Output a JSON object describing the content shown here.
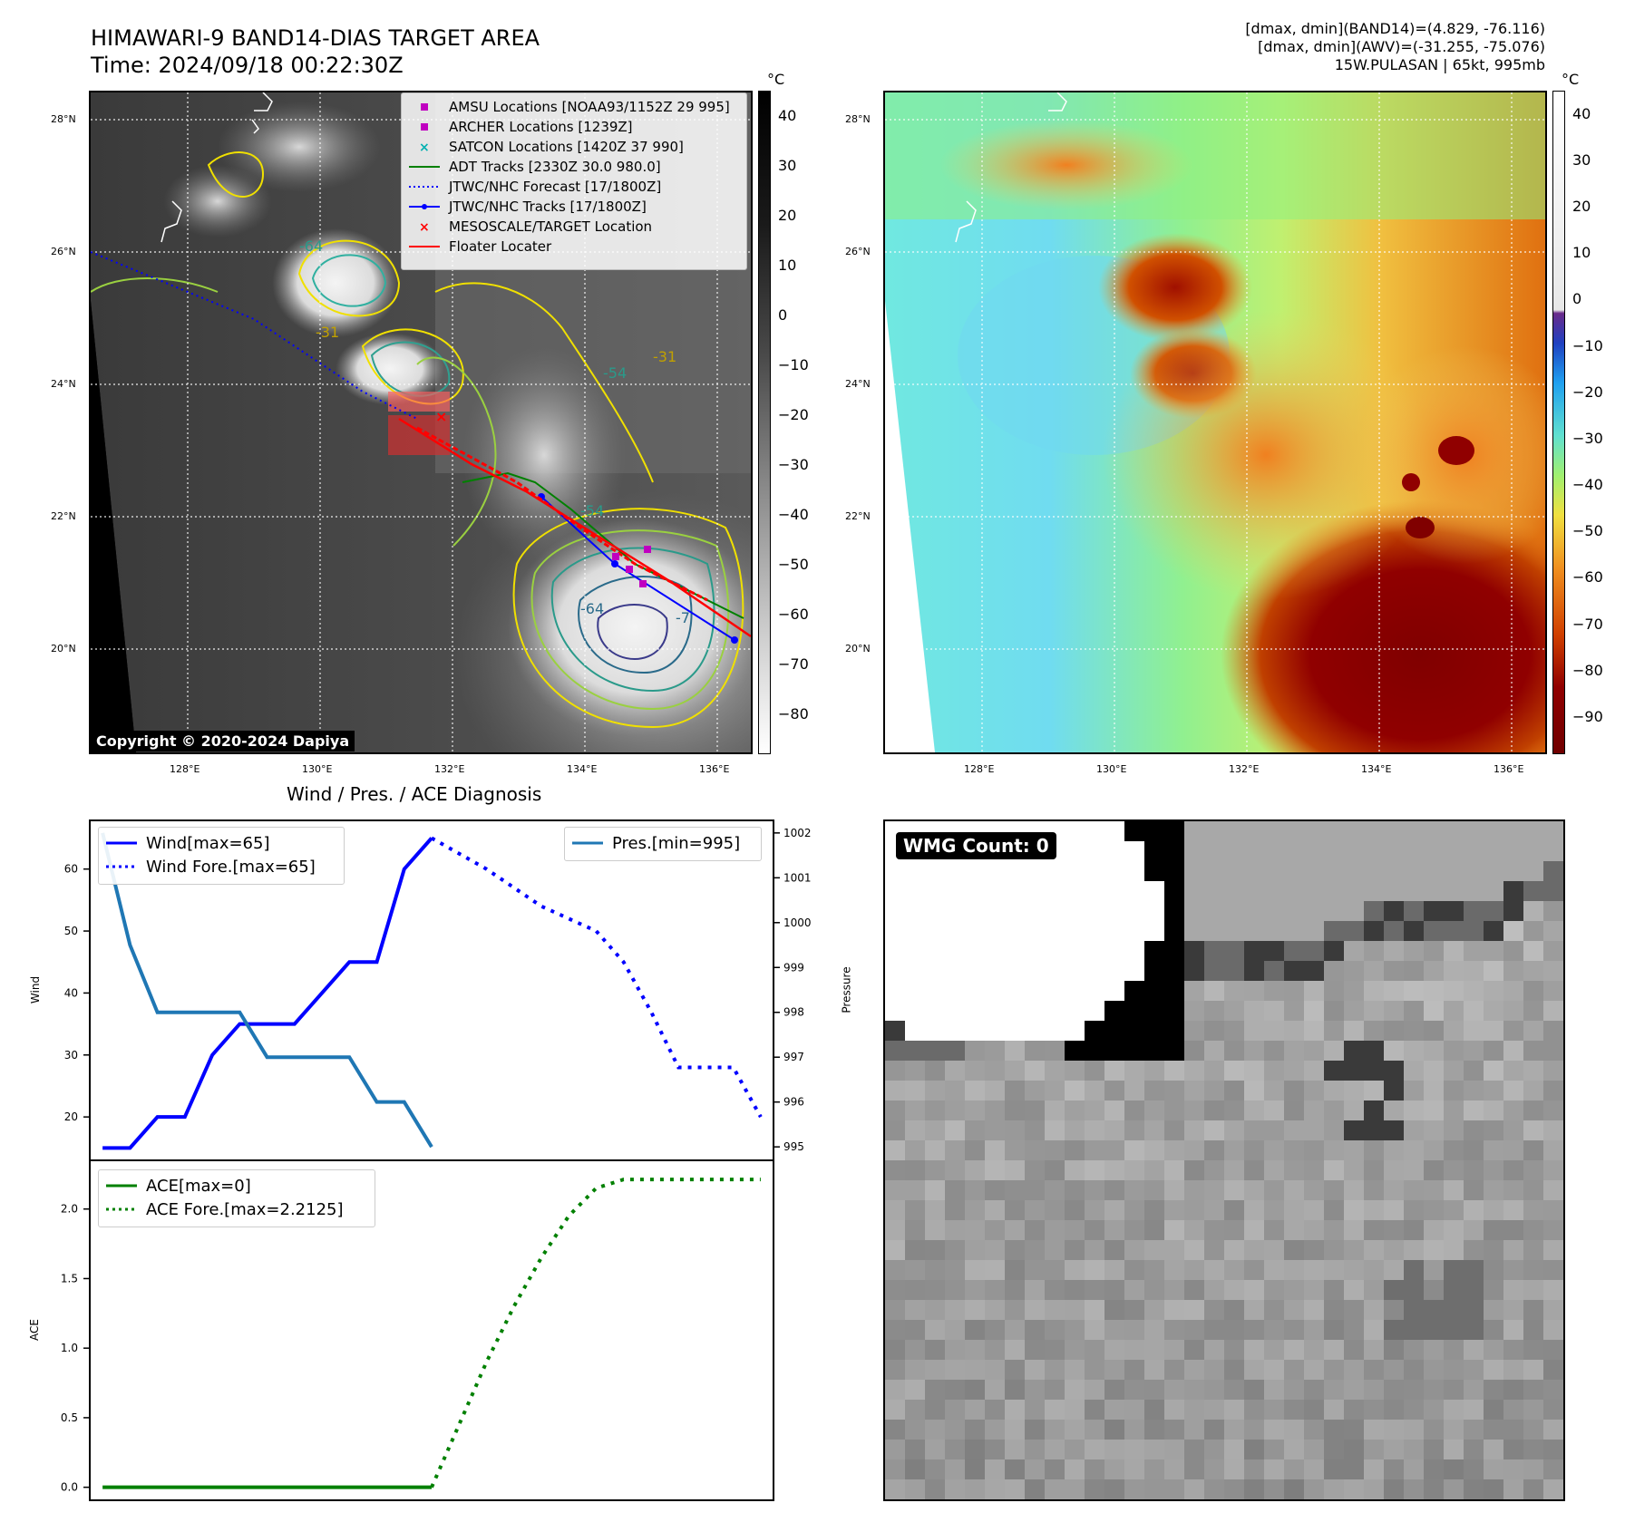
{
  "header": {
    "title_line1": "HIMAWARI-9 BAND14-DIAS TARGET AREA",
    "title_line2": "Time: 2024/09/18 00:22:30Z",
    "info_line1": "[dmax, dmin](BAND14)=(4.829, -76.116)",
    "info_line2": "[dmax, dmin](AWV)=(-31.255, -75.076)",
    "info_line3": "15W.PULASAN | 65kt, 995mb"
  },
  "map": {
    "lat_labels": [
      "28°N",
      "26°N",
      "24°N",
      "22°N",
      "20°N"
    ],
    "lon_labels": [
      "128°E",
      "130°E",
      "132°E",
      "134°E",
      "136°E"
    ],
    "contour_labels": [
      "-64",
      "-54",
      "-31",
      "-31",
      "-54",
      "-64",
      "-7"
    ],
    "copyright": "Copyright © 2020-2024 Dapiya"
  },
  "colorbar_left": {
    "unit": "°C",
    "ticks": [
      "40",
      "30",
      "20",
      "10",
      "0",
      "−10",
      "−20",
      "−30",
      "−40",
      "−50",
      "−60",
      "−70",
      "−80"
    ]
  },
  "colorbar_right": {
    "unit": "°C",
    "ticks": [
      "40",
      "30",
      "20",
      "10",
      "0",
      "−10",
      "−20",
      "−30",
      "−40",
      "−50",
      "−60",
      "−70",
      "−80",
      "−90"
    ]
  },
  "legend_map": [
    {
      "label": "AMSU Locations [NOAA93/1152Z 29 995]",
      "symbol": "square",
      "color": "#c000c0"
    },
    {
      "label": "ARCHER Locations [1239Z]",
      "symbol": "square",
      "color": "#c000c0"
    },
    {
      "label": "SATCON Locations [1420Z 37 990]",
      "symbol": "x",
      "color": "#00b0b0"
    },
    {
      "label": "ADT Tracks [2330Z 30.0 980.0]",
      "symbol": "line",
      "color": "#008000"
    },
    {
      "label": "JTWC/NHC Forecast [17/1800Z]",
      "symbol": "dotted",
      "color": "#0000ff"
    },
    {
      "label": "JTWC/NHC Tracks [17/1800Z]",
      "symbol": "line-dot",
      "color": "#0000ff"
    },
    {
      "label": "MESOSCALE/TARGET Location",
      "symbol": "x",
      "color": "#ff0000"
    },
    {
      "label": "Floater Locater",
      "symbol": "line",
      "color": "#ff0000"
    }
  ],
  "diagnosis": {
    "title": "Wind / Pres. / ACE Diagnosis",
    "wind_label": "Wind",
    "pressure_label": "Pressure",
    "ace_label": "ACE",
    "legend_wind": "Wind[max=65]",
    "legend_wind_fore": "Wind Fore.[max=65]",
    "legend_pres": "Pres.[min=995]",
    "legend_ace": "ACE[max=0]",
    "legend_ace_fore": "ACE Fore.[max=2.2125]"
  },
  "wmg": {
    "label": "WMG Count: 0"
  },
  "chart_data": [
    {
      "type": "line",
      "name": "wind",
      "x": [
        0,
        1,
        2,
        3,
        4,
        5,
        6,
        7,
        8,
        9,
        10,
        11,
        12
      ],
      "series": [
        {
          "name": "Wind[max=65]",
          "values": [
            15,
            15,
            20,
            20,
            30,
            35,
            35,
            35,
            40,
            45,
            45,
            60,
            65
          ],
          "color": "#0000ff",
          "style": "solid"
        },
        {
          "name": "Wind Fore.[max=65]",
          "x": [
            12,
            13,
            14,
            15,
            16,
            17,
            18,
            19,
            20,
            21,
            22,
            23,
            24
          ],
          "values": [
            65,
            62.5,
            60,
            57,
            54,
            52,
            50,
            45,
            37,
            28,
            28,
            28,
            20
          ],
          "color": "#0000ff",
          "style": "dotted"
        }
      ],
      "ylabel": "Wind",
      "ylim": [
        13,
        68
      ],
      "xlim": [
        -0.5,
        24.5
      ],
      "yticks": [
        20,
        30,
        40,
        50,
        60
      ]
    },
    {
      "type": "line",
      "name": "pressure",
      "x": [
        0,
        1,
        2,
        3,
        4,
        5,
        6,
        7,
        8,
        9,
        10,
        11,
        12
      ],
      "series": [
        {
          "name": "Pres.[min=995]",
          "values": [
            1002,
            999.5,
            998,
            998,
            998,
            998,
            997,
            997,
            997,
            997,
            996,
            996,
            995
          ],
          "color": "#1f77b4",
          "style": "solid"
        }
      ],
      "ylabel": "Pressure",
      "ylim": [
        994.7,
        1002.3
      ],
      "yticks": [
        995,
        996,
        997,
        998,
        999,
        1000,
        1001,
        1002
      ]
    },
    {
      "type": "line",
      "name": "ace",
      "x": [
        0,
        1,
        2,
        3,
        4,
        5,
        6,
        7,
        8,
        9,
        10,
        11,
        12
      ],
      "series": [
        {
          "name": "ACE[max=0]",
          "values": [
            0,
            0,
            0,
            0,
            0,
            0,
            0,
            0,
            0,
            0,
            0,
            0,
            0
          ],
          "color": "#008000",
          "style": "solid"
        },
        {
          "name": "ACE Fore.[max=2.2125]",
          "x": [
            12,
            13,
            14,
            15,
            16,
            17,
            18,
            19,
            20,
            21,
            22,
            23,
            24
          ],
          "values": [
            0,
            0.45,
            0.9,
            1.3,
            1.65,
            1.95,
            2.15,
            2.2125,
            2.2125,
            2.2125,
            2.2125,
            2.2125,
            2.2125
          ],
          "color": "#008000",
          "style": "dotted"
        }
      ],
      "ylabel": "ACE",
      "ylim": [
        -0.1,
        2.35
      ],
      "yticks": [
        0.0,
        0.5,
        1.0,
        1.5,
        2.0
      ],
      "ytick_labels": [
        "0.0",
        "0.5",
        "1.0",
        "1.5",
        "2.0"
      ]
    }
  ]
}
